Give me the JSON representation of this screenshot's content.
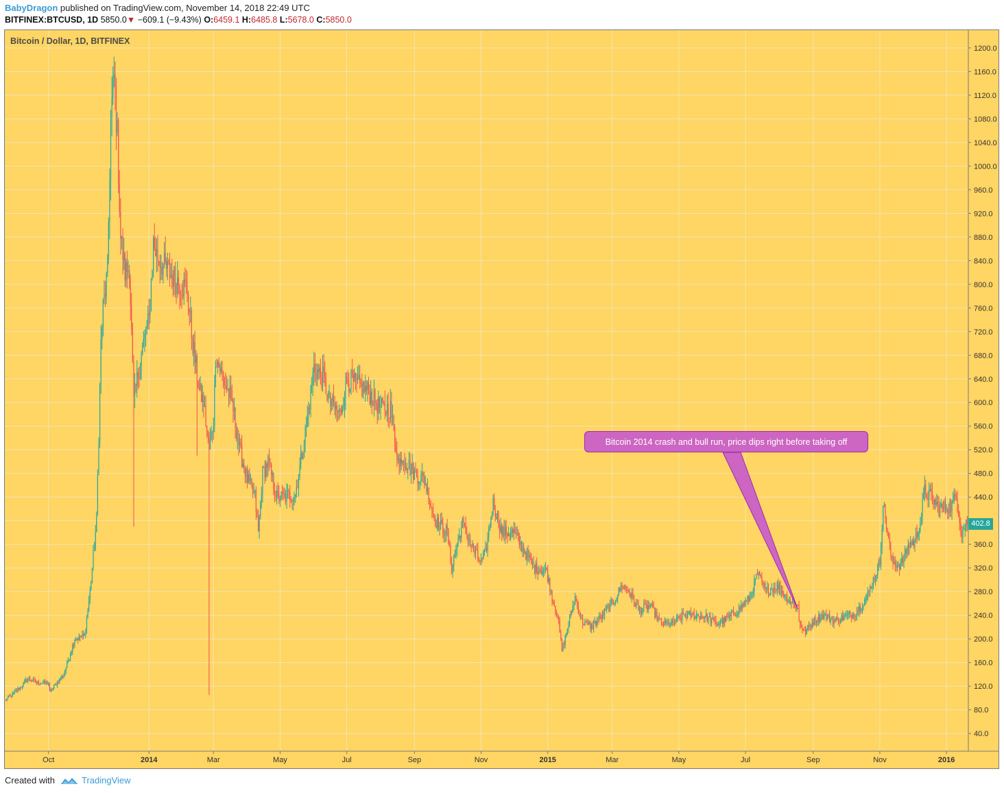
{
  "header": {
    "author": "BabyDragon",
    "published": "published on TradingView.com, November 14, 2018 22:49 UTC",
    "symbol": "BITFINEX:BTCUSD, 1D",
    "last": "5850.0",
    "change": "−609.1 (−9.43%)",
    "open_label": "O:",
    "open": "6459.1",
    "high_label": "H:",
    "high": "6485.8",
    "low_label": "L:",
    "low": "5678.0",
    "close_label": "C:",
    "close": "5850.0"
  },
  "footer": {
    "created_with": "Created with",
    "brand": "TradingView"
  },
  "icons": {
    "change_direction": "triangle-down-icon",
    "footer_logo": "tradingview-logo-icon"
  },
  "colors": {
    "background": "#ffd563",
    "grid": "#f3e5b4",
    "up": "#26a69a",
    "down": "#ef5350",
    "callout": "#cc66c2",
    "callout_border": "#9b2bb0",
    "author": "#3a9bd6"
  },
  "chart_data": {
    "type": "candlestick",
    "title": "Bitcoin / Dollar, 1D, BITFINEX",
    "xlabel": "",
    "ylabel": "",
    "ylim": [
      10,
      1230
    ],
    "xlim": [
      "2013-08-22",
      "2016-01-21"
    ],
    "grid": true,
    "y_ticks": [
      40,
      80,
      120,
      160,
      200,
      240,
      280,
      320,
      360,
      400,
      440,
      480,
      520,
      560,
      600,
      640,
      680,
      720,
      760,
      800,
      840,
      880,
      920,
      960,
      1000,
      1040,
      1080,
      1120,
      1160,
      1200
    ],
    "y_tick_labels": [
      "40.0",
      "80.0",
      "120.0",
      "160.0",
      "200.0",
      "240.0",
      "280.0",
      "320.0",
      "360.0",
      "400.0",
      "440.0",
      "480.0",
      "520.0",
      "560.0",
      "600.0",
      "640.0",
      "680.0",
      "720.0",
      "760.0",
      "800.0",
      "840.0",
      "880.0",
      "920.0",
      "960.0",
      "1000.0",
      "1040.0",
      "1080.0",
      "1120.0",
      "1160.0",
      "1200.0"
    ],
    "x_ticks": [
      {
        "date": "2013-10-01",
        "label": "Oct",
        "bold": false
      },
      {
        "date": "2014-01-01",
        "label": "2014",
        "bold": true
      },
      {
        "date": "2014-03-01",
        "label": "Mar",
        "bold": false
      },
      {
        "date": "2014-05-01",
        "label": "May",
        "bold": false
      },
      {
        "date": "2014-07-01",
        "label": "Jul",
        "bold": false
      },
      {
        "date": "2014-09-01",
        "label": "Sep",
        "bold": false
      },
      {
        "date": "2014-11-01",
        "label": "Nov",
        "bold": false
      },
      {
        "date": "2015-01-01",
        "label": "2015",
        "bold": true
      },
      {
        "date": "2015-03-01",
        "label": "Mar",
        "bold": false
      },
      {
        "date": "2015-05-01",
        "label": "May",
        "bold": false
      },
      {
        "date": "2015-07-01",
        "label": "Jul",
        "bold": false
      },
      {
        "date": "2015-09-01",
        "label": "Sep",
        "bold": false
      },
      {
        "date": "2015-11-01",
        "label": "Nov",
        "bold": false
      },
      {
        "date": "2016-01-01",
        "label": "2016",
        "bold": true
      }
    ],
    "close_series": [
      [
        "2013-08-22",
        95
      ],
      [
        "2013-09-05",
        118
      ],
      [
        "2013-09-12",
        133
      ],
      [
        "2013-09-20",
        126
      ],
      [
        "2013-10-01",
        125
      ],
      [
        "2013-10-02",
        110
      ],
      [
        "2013-10-15",
        140
      ],
      [
        "2013-10-25",
        200
      ],
      [
        "2013-11-03",
        205
      ],
      [
        "2013-11-08",
        280
      ],
      [
        "2013-11-14",
        400
      ],
      [
        "2013-11-18",
        700
      ],
      [
        "2013-11-20",
        760
      ],
      [
        "2013-11-24",
        820
      ],
      [
        "2013-11-27",
        1080
      ],
      [
        "2013-11-30",
        1150
      ],
      [
        "2013-12-03",
        1050
      ],
      [
        "2013-12-06",
        880
      ],
      [
        "2013-12-10",
        820
      ],
      [
        "2013-12-14",
        830
      ],
      [
        "2013-12-18",
        600
      ],
      [
        "2013-12-22",
        650
      ],
      [
        "2013-12-27",
        700
      ],
      [
        "2014-01-01",
        740
      ],
      [
        "2014-01-05",
        870
      ],
      [
        "2014-01-08",
        850
      ],
      [
        "2014-01-15",
        830
      ],
      [
        "2014-01-25",
        810
      ],
      [
        "2014-02-05",
        790
      ],
      [
        "2014-02-10",
        700
      ],
      [
        "2014-02-16",
        620
      ],
      [
        "2014-02-20",
        600
      ],
      [
        "2014-02-25",
        520
      ],
      [
        "2014-03-01",
        570
      ],
      [
        "2014-03-03",
        680
      ],
      [
        "2014-03-10",
        640
      ],
      [
        "2014-03-18",
        600
      ],
      [
        "2014-03-25",
        520
      ],
      [
        "2014-04-01",
        470
      ],
      [
        "2014-04-08",
        440
      ],
      [
        "2014-04-11",
        380
      ],
      [
        "2014-04-15",
        480
      ],
      [
        "2014-04-20",
        500
      ],
      [
        "2014-04-28",
        440
      ],
      [
        "2014-05-06",
        440
      ],
      [
        "2014-05-15",
        445
      ],
      [
        "2014-05-25",
        560
      ],
      [
        "2014-06-01",
        660
      ],
      [
        "2014-06-05",
        650
      ],
      [
        "2014-06-10",
        640
      ],
      [
        "2014-06-15",
        600
      ],
      [
        "2014-06-20",
        590
      ],
      [
        "2014-06-25",
        580
      ],
      [
        "2014-07-01",
        640
      ],
      [
        "2014-07-10",
        630
      ],
      [
        "2014-07-20",
        620
      ],
      [
        "2014-08-01",
        590
      ],
      [
        "2014-08-10",
        590
      ],
      [
        "2014-08-18",
        490
      ],
      [
        "2014-08-20",
        510
      ],
      [
        "2014-09-01",
        480
      ],
      [
        "2014-09-10",
        470
      ],
      [
        "2014-09-20",
        400
      ],
      [
        "2014-10-01",
        380
      ],
      [
        "2014-10-05",
        320
      ],
      [
        "2014-10-10",
        360
      ],
      [
        "2014-10-15",
        395
      ],
      [
        "2014-10-25",
        350
      ],
      [
        "2014-11-01",
        330
      ],
      [
        "2014-11-05",
        345
      ],
      [
        "2014-11-12",
        430
      ],
      [
        "2014-11-20",
        380
      ],
      [
        "2014-12-01",
        380
      ],
      [
        "2014-12-10",
        350
      ],
      [
        "2014-12-20",
        320
      ],
      [
        "2014-12-31",
        315
      ],
      [
        "2015-01-05",
        270
      ],
      [
        "2015-01-10",
        240
      ],
      [
        "2015-01-14",
        180
      ],
      [
        "2015-01-20",
        225
      ],
      [
        "2015-01-26",
        270
      ],
      [
        "2015-02-01",
        230
      ],
      [
        "2015-02-10",
        220
      ],
      [
        "2015-02-20",
        240
      ],
      [
        "2015-03-01",
        260
      ],
      [
        "2015-03-10",
        290
      ],
      [
        "2015-03-15",
        285
      ],
      [
        "2015-03-25",
        250
      ],
      [
        "2015-04-05",
        255
      ],
      [
        "2015-04-15",
        225
      ],
      [
        "2015-04-25",
        225
      ],
      [
        "2015-05-05",
        240
      ],
      [
        "2015-05-15",
        240
      ],
      [
        "2015-05-25",
        238
      ],
      [
        "2015-06-05",
        225
      ],
      [
        "2015-06-15",
        235
      ],
      [
        "2015-06-25",
        250
      ],
      [
        "2015-07-05",
        270
      ],
      [
        "2015-07-12",
        310
      ],
      [
        "2015-07-20",
        280
      ],
      [
        "2015-07-30",
        290
      ],
      [
        "2015-08-10",
        265
      ],
      [
        "2015-08-18",
        255
      ],
      [
        "2015-08-19",
        230
      ],
      [
        "2015-08-24",
        210
      ],
      [
        "2015-09-01",
        230
      ],
      [
        "2015-09-10",
        240
      ],
      [
        "2015-09-20",
        230
      ],
      [
        "2015-10-01",
        238
      ],
      [
        "2015-10-10",
        245
      ],
      [
        "2015-10-20",
        270
      ],
      [
        "2015-10-28",
        310
      ],
      [
        "2015-11-01",
        330
      ],
      [
        "2015-11-04",
        430
      ],
      [
        "2015-11-08",
        380
      ],
      [
        "2015-11-12",
        330
      ],
      [
        "2015-11-20",
        325
      ],
      [
        "2015-11-28",
        360
      ],
      [
        "2015-12-03",
        365
      ],
      [
        "2015-12-08",
        400
      ],
      [
        "2015-12-12",
        450
      ],
      [
        "2015-12-18",
        440
      ],
      [
        "2015-12-25",
        420
      ],
      [
        "2016-01-05",
        425
      ],
      [
        "2016-01-10",
        440
      ],
      [
        "2016-01-15",
        380
      ],
      [
        "2016-01-21",
        402.8
      ]
    ],
    "spikes": [
      {
        "date": "2013-12-18",
        "low": 390
      },
      {
        "date": "2014-02-25",
        "low": 105
      },
      {
        "date": "2014-02-14",
        "low": 510
      }
    ],
    "last_price": "402.8",
    "annotation": {
      "text": "Bitcoin 2014 crash and bull run, price dips right before taking off",
      "target_date": "2015-08-18",
      "target_price": 250
    }
  }
}
